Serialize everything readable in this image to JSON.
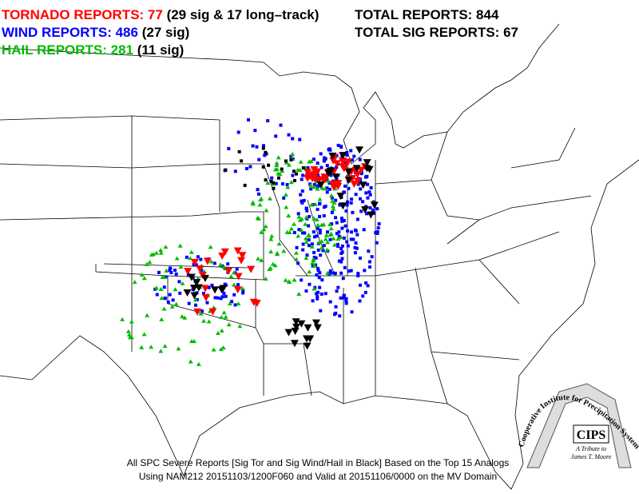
{
  "legend": {
    "tornado": {
      "label": "TORNADO REPORTS: 77",
      "detail": "(29 sig & 17 long–track)"
    },
    "wind": {
      "label": "WIND REPORTS: 486",
      "detail": "(27 sig)"
    },
    "hail": {
      "label": "HAIL REPORTS: 281",
      "detail": "(11 sig)"
    }
  },
  "totals": {
    "total": "TOTAL REPORTS: 844",
    "sig": "TOTAL SIG REPORTS: 67"
  },
  "footer": [
    "All SPC Severe Reports [Sig Tor and Sig Wind/Hail in Black] Based on the Top 15 Analogs",
    "Using NAM212 20151103/1200F060 and Valid at 20151106/0000 on the MV Domain"
  ],
  "logo": {
    "arc": "Cooperative Institute for Precipitation Systems",
    "name": "CIPS",
    "tribute": "A Tribute to",
    "person": "James T. Moore"
  }
}
